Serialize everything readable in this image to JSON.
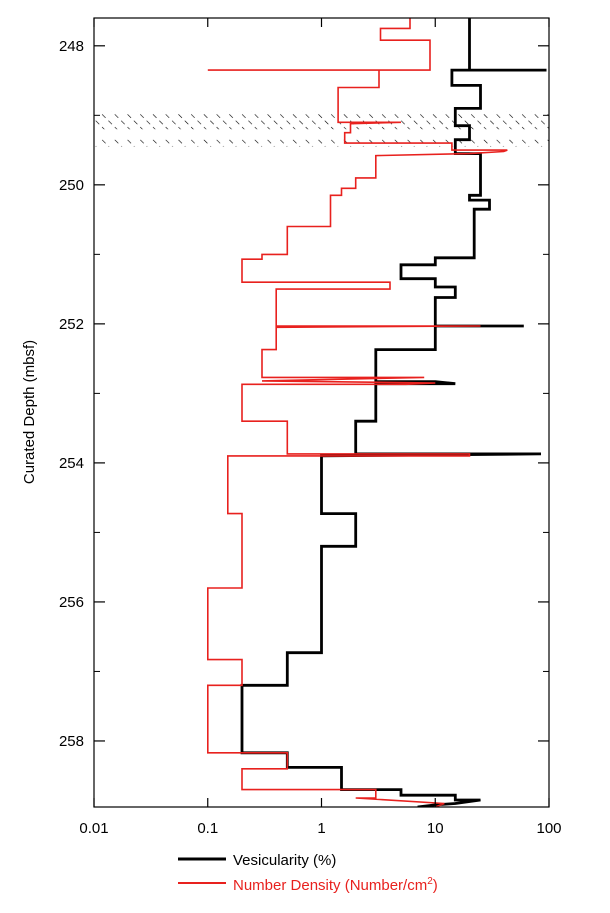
{
  "chart_data": {
    "type": "line",
    "ylabel": "Curated Depth (mbsf)",
    "xlabel": "",
    "x_scale": "log",
    "xlim": [
      0.01,
      100
    ],
    "ylim": [
      258.95,
      247.6
    ],
    "y_inverted": true,
    "x_ticks": [
      0.01,
      0.1,
      1,
      10,
      100
    ],
    "x_tick_labels": [
      "0.01",
      "0.1",
      "1",
      "10",
      "100"
    ],
    "y_ticks": [
      248,
      250,
      252,
      254,
      256,
      258
    ],
    "y_tick_labels": [
      "248",
      "250",
      "252",
      "254",
      "256",
      "258"
    ],
    "y_minor_ticks": [
      249,
      251,
      253,
      255,
      257
    ],
    "grid": false,
    "legend_position": "bottom",
    "hatched_intervals": [
      [
        248.95,
        249.2
      ],
      [
        249.35,
        249.45
      ]
    ],
    "series": [
      {
        "name": "Vesicularity (%)",
        "color": "#000000",
        "legend_label": "Vesicularity (%)",
        "points": [
          [
            20,
            247.6
          ],
          [
            20,
            248.35
          ],
          [
            95,
            248.35
          ],
          [
            20,
            248.35
          ],
          [
            14,
            248.35
          ],
          [
            14,
            248.57
          ],
          [
            25,
            248.57
          ],
          [
            25,
            248.9
          ],
          [
            15,
            248.9
          ],
          [
            15,
            249.15
          ],
          [
            20,
            249.15
          ],
          [
            20,
            249.35
          ],
          [
            15,
            249.35
          ],
          [
            15,
            249.55
          ],
          [
            25,
            249.55
          ],
          [
            25,
            250.15
          ],
          [
            20,
            250.15
          ],
          [
            20,
            250.22
          ],
          [
            30,
            250.22
          ],
          [
            30,
            250.35
          ],
          [
            22,
            250.35
          ],
          [
            22,
            251.05
          ],
          [
            10,
            251.05
          ],
          [
            10,
            251.15
          ],
          [
            5,
            251.15
          ],
          [
            5,
            251.35
          ],
          [
            10,
            251.35
          ],
          [
            10,
            251.47
          ],
          [
            15,
            251.47
          ],
          [
            15,
            251.62
          ],
          [
            10,
            251.62
          ],
          [
            10,
            252.03
          ],
          [
            60,
            252.03
          ],
          [
            10,
            252.03
          ],
          [
            10,
            252.37
          ],
          [
            3,
            252.37
          ],
          [
            3,
            252.83
          ],
          [
            10,
            252.83
          ],
          [
            5,
            252.83
          ],
          [
            10,
            252.83
          ],
          [
            15,
            252.86
          ],
          [
            3,
            252.86
          ],
          [
            3,
            253.4
          ],
          [
            2,
            253.4
          ],
          [
            2,
            253.87
          ],
          [
            85,
            253.87
          ],
          [
            1,
            253.9
          ],
          [
            1,
            254.73
          ],
          [
            2,
            254.73
          ],
          [
            2,
            255.2
          ],
          [
            1,
            255.2
          ],
          [
            1,
            256.73
          ],
          [
            0.5,
            256.73
          ],
          [
            0.5,
            257.2
          ],
          [
            0.2,
            257.2
          ],
          [
            0.2,
            258.17
          ],
          [
            0.5,
            258.17
          ],
          [
            0.5,
            258.38
          ],
          [
            1.5,
            258.38
          ],
          [
            1.5,
            258.7
          ],
          [
            5,
            258.7
          ],
          [
            5,
            258.78
          ],
          [
            15,
            258.78
          ],
          [
            15,
            258.85
          ],
          [
            25,
            258.85
          ],
          [
            15,
            258.9
          ],
          [
            10,
            258.92
          ],
          [
            7,
            258.95
          ]
        ]
      },
      {
        "name": "Number Density (Number/cm²)",
        "color": "#e8211e",
        "legend_label_main": "Number Density (Number/cm",
        "legend_label_sup": "2",
        "legend_label_end": ")",
        "points": [
          [
            6,
            247.6
          ],
          [
            6,
            247.75
          ],
          [
            3.3,
            247.75
          ],
          [
            3.3,
            247.92
          ],
          [
            9,
            247.92
          ],
          [
            9,
            248.35
          ],
          [
            0.1,
            248.35
          ],
          [
            3.2,
            248.35
          ],
          [
            3.2,
            248.6
          ],
          [
            1.4,
            248.6
          ],
          [
            1.4,
            249.1
          ],
          [
            5,
            249.1
          ],
          [
            1.8,
            249.12
          ],
          [
            1.8,
            249.25
          ],
          [
            1.6,
            249.25
          ],
          [
            1.6,
            249.4
          ],
          [
            14,
            249.4
          ],
          [
            14,
            249.5
          ],
          [
            43,
            249.5
          ],
          [
            40,
            249.52
          ],
          [
            20,
            249.55
          ],
          [
            3,
            249.58
          ],
          [
            3,
            249.9
          ],
          [
            2,
            249.9
          ],
          [
            2,
            250.05
          ],
          [
            1.5,
            250.05
          ],
          [
            1.5,
            250.15
          ],
          [
            1.2,
            250.15
          ],
          [
            1.2,
            250.6
          ],
          [
            0.5,
            250.6
          ],
          [
            0.5,
            251.0
          ],
          [
            0.3,
            251.0
          ],
          [
            0.3,
            251.07
          ],
          [
            0.2,
            251.07
          ],
          [
            0.2,
            251.4
          ],
          [
            4,
            251.4
          ],
          [
            4,
            251.5
          ],
          [
            0.4,
            251.5
          ],
          [
            0.4,
            252.03
          ],
          [
            25,
            252.03
          ],
          [
            0.4,
            252.05
          ],
          [
            0.4,
            252.37
          ],
          [
            0.3,
            252.37
          ],
          [
            0.3,
            252.77
          ],
          [
            8,
            252.77
          ],
          [
            0.3,
            252.82
          ],
          [
            10,
            252.85
          ],
          [
            5.5,
            252.87
          ],
          [
            0.2,
            252.87
          ],
          [
            0.2,
            253.4
          ],
          [
            0.5,
            253.4
          ],
          [
            0.5,
            253.87
          ],
          [
            20,
            253.87
          ],
          [
            20,
            253.9
          ],
          [
            0.15,
            253.9
          ],
          [
            0.15,
            254.73
          ],
          [
            0.2,
            254.73
          ],
          [
            0.2,
            255.8
          ],
          [
            0.1,
            255.8
          ],
          [
            0.1,
            256.83
          ],
          [
            0.2,
            256.83
          ],
          [
            0.2,
            257.2
          ],
          [
            0.1,
            257.2
          ],
          [
            0.1,
            258.17
          ],
          [
            0.5,
            258.17
          ],
          [
            0.5,
            258.4
          ],
          [
            0.2,
            258.4
          ],
          [
            0.2,
            258.7
          ],
          [
            3,
            258.7
          ],
          [
            3,
            258.82
          ],
          [
            2,
            258.82
          ],
          [
            12,
            258.9
          ],
          [
            10,
            258.95
          ]
        ]
      }
    ]
  }
}
